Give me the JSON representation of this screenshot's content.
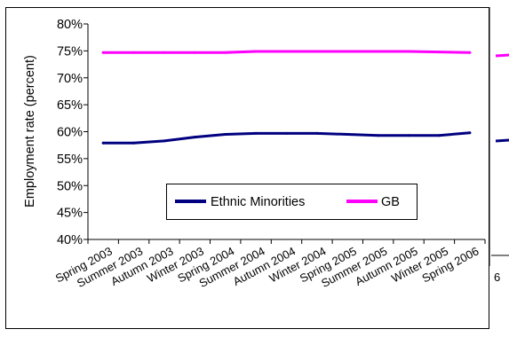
{
  "chart_data": {
    "type": "line",
    "title": "",
    "xlabel": "",
    "ylabel": "Employment rate (percent)",
    "ylim": [
      40,
      80
    ],
    "y_ticks": [
      "40%",
      "45%",
      "50%",
      "55%",
      "60%",
      "65%",
      "70%",
      "75%",
      "80%"
    ],
    "y_tick_values": [
      40,
      45,
      50,
      55,
      60,
      65,
      70,
      75,
      80
    ],
    "grid": false,
    "legend_position": "bottom-center",
    "categories": [
      "Spring 2003",
      "Summer 2003",
      "Autumn 2003",
      "Winter 2003",
      "Spring 2004",
      "Summer 2004",
      "Autumn 2004",
      "Winter 2004",
      "Spring 2005",
      "Summer 2005",
      "Autumn 2005",
      "Winter 2005",
      "Spring 2006"
    ],
    "series": [
      {
        "name": "Ethnic Minorities",
        "color": "#000080",
        "values": [
          57.9,
          57.9,
          58.3,
          59.0,
          59.5,
          59.7,
          59.7,
          59.7,
          59.5,
          59.3,
          59.3,
          59.3,
          59.8
        ]
      },
      {
        "name": "GB",
        "color": "#ff00ff",
        "values": [
          74.7,
          74.7,
          74.7,
          74.7,
          74.7,
          74.9,
          74.9,
          74.9,
          74.9,
          74.9,
          74.9,
          74.8,
          74.7
        ]
      }
    ]
  },
  "clipped_fragment": {
    "tick_text": "6"
  }
}
